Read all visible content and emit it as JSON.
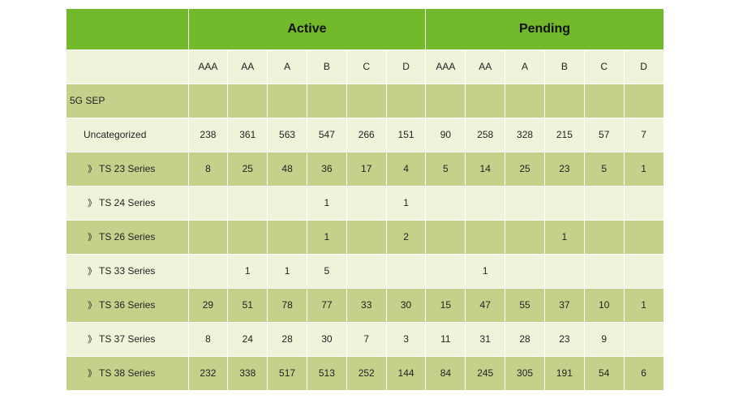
{
  "colors": {
    "header_green": "#72b92c",
    "row_dark": "#c3d18b",
    "row_light": "#eef4da"
  },
  "groups": [
    "Active",
    "Pending"
  ],
  "grades": [
    "AAA",
    "AA",
    "A",
    "B",
    "C",
    "D"
  ],
  "rows": [
    {
      "label": "5G SEP",
      "level": 0,
      "chevron": false,
      "active": [
        "",
        "",
        "",
        "",
        "",
        ""
      ],
      "pending": [
        "",
        "",
        "",
        "",
        "",
        ""
      ]
    },
    {
      "label": "Uncategorized",
      "level": 1,
      "chevron": false,
      "active": [
        "238",
        "361",
        "563",
        "547",
        "266",
        "151"
      ],
      "pending": [
        "90",
        "258",
        "328",
        "215",
        "57",
        "7"
      ]
    },
    {
      "label": "TS 23 Series",
      "level": 2,
      "chevron": true,
      "active": [
        "8",
        "25",
        "48",
        "36",
        "17",
        "4"
      ],
      "pending": [
        "5",
        "14",
        "25",
        "23",
        "5",
        "1"
      ]
    },
    {
      "label": "TS 24 Series",
      "level": 2,
      "chevron": true,
      "active": [
        "",
        "",
        "",
        "1",
        "",
        "1"
      ],
      "pending": [
        "",
        "",
        "",
        "",
        "",
        ""
      ]
    },
    {
      "label": "TS 26 Series",
      "level": 2,
      "chevron": true,
      "active": [
        "",
        "",
        "",
        "1",
        "",
        "2"
      ],
      "pending": [
        "",
        "",
        "",
        "1",
        "",
        ""
      ]
    },
    {
      "label": "TS 33 Series",
      "level": 2,
      "chevron": true,
      "active": [
        "",
        "1",
        "1",
        "5",
        "",
        ""
      ],
      "pending": [
        "",
        "1",
        "",
        "",
        "",
        ""
      ]
    },
    {
      "label": "TS 36 Series",
      "level": 2,
      "chevron": true,
      "active": [
        "29",
        "51",
        "78",
        "77",
        "33",
        "30"
      ],
      "pending": [
        "15",
        "47",
        "55",
        "37",
        "10",
        "1"
      ]
    },
    {
      "label": "TS 37 Series",
      "level": 2,
      "chevron": true,
      "active": [
        "8",
        "24",
        "28",
        "30",
        "7",
        "3"
      ],
      "pending": [
        "11",
        "31",
        "28",
        "23",
        "9",
        ""
      ]
    },
    {
      "label": "TS 38 Series",
      "level": 2,
      "chevron": true,
      "active": [
        "232",
        "338",
        "517",
        "513",
        "252",
        "144"
      ],
      "pending": [
        "84",
        "245",
        "305",
        "191",
        "54",
        "6"
      ]
    }
  ],
  "chevron_glyph": "》"
}
